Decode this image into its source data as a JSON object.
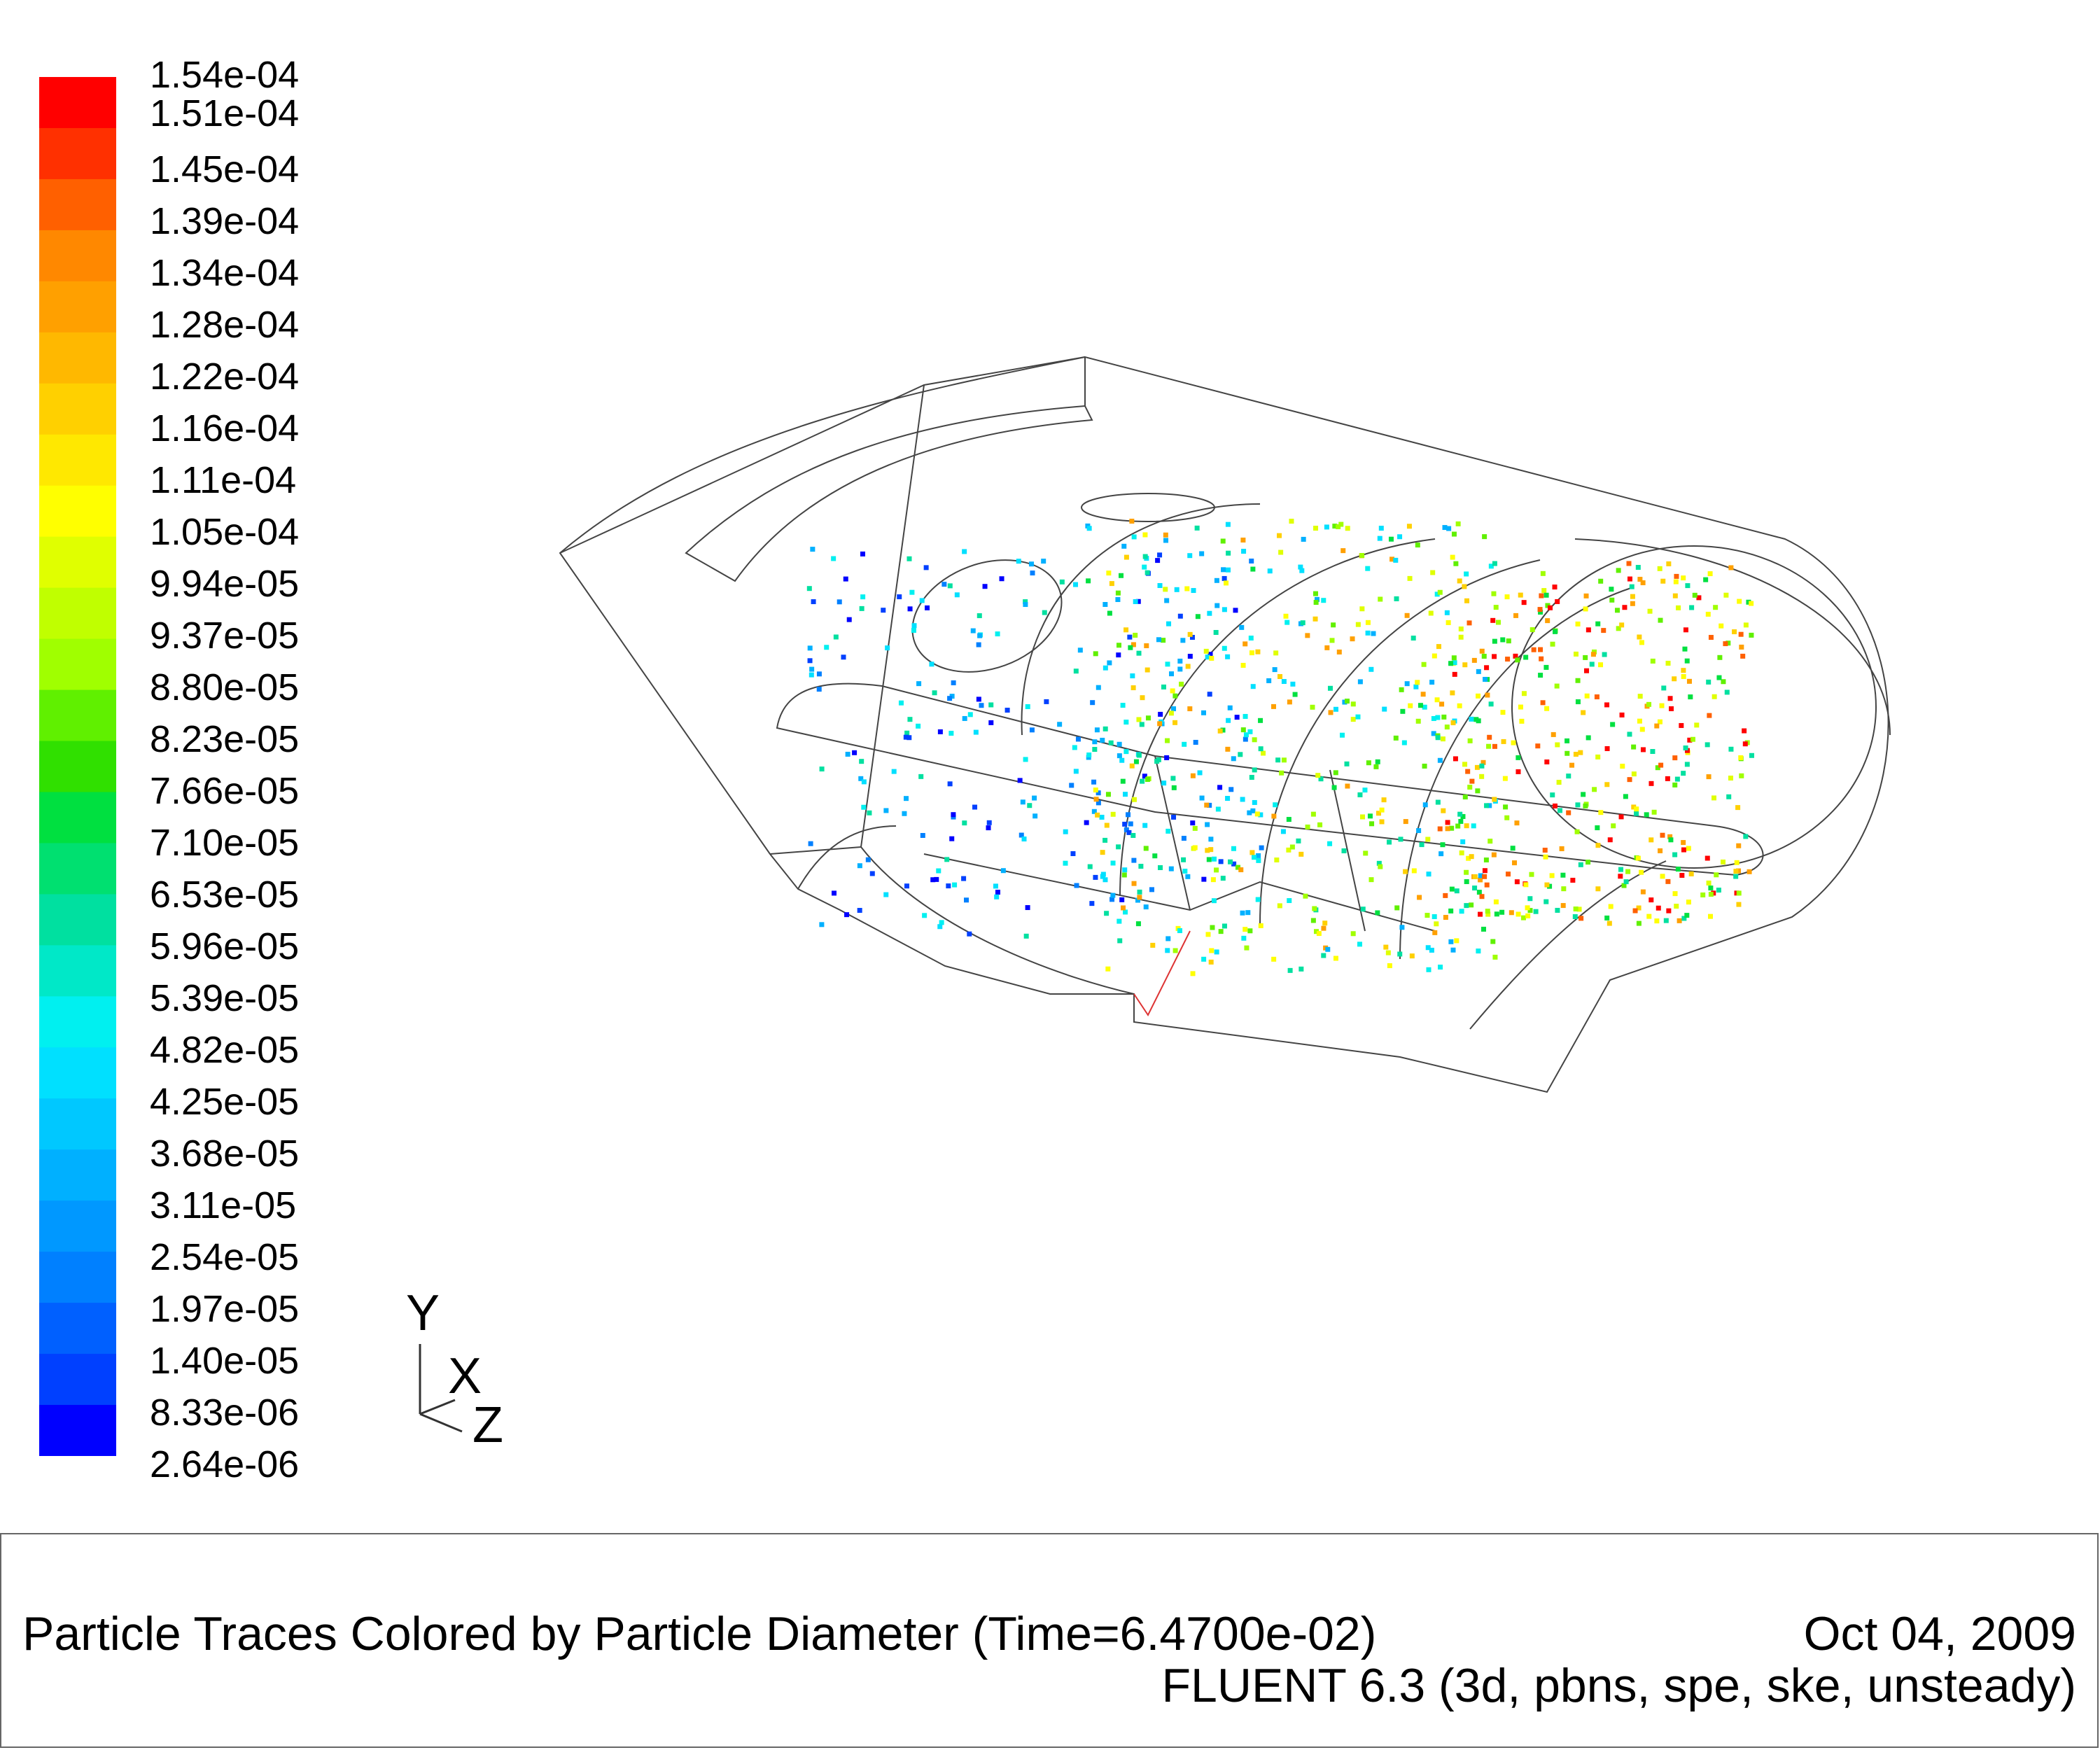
{
  "legend": {
    "labels": [
      "1.54e-04",
      "1.51e-04",
      "1.45e-04",
      "1.39e-04",
      "1.34e-04",
      "1.28e-04",
      "1.22e-04",
      "1.16e-04",
      "1.11e-04",
      "1.05e-04",
      "9.94e-05",
      "9.37e-05",
      "8.80e-05",
      "8.23e-05",
      "7.66e-05",
      "7.10e-05",
      "6.53e-05",
      "5.96e-05",
      "5.39e-05",
      "4.82e-05",
      "4.25e-05",
      "3.68e-05",
      "3.11e-05",
      "2.54e-05",
      "1.97e-05",
      "1.40e-05",
      "8.33e-06",
      "2.64e-06"
    ],
    "colors": [
      "#ff0000",
      "#ff3000",
      "#ff6000",
      "#ff8800",
      "#ffa000",
      "#ffb800",
      "#ffd000",
      "#ffe800",
      "#ffff00",
      "#e0ff00",
      "#c0ff00",
      "#a0ff00",
      "#60f000",
      "#30e000",
      "#00e040",
      "#00e070",
      "#00e0a0",
      "#00e8c8",
      "#00f0f0",
      "#00e0ff",
      "#00c8ff",
      "#00b0ff",
      "#0098ff",
      "#0080ff",
      "#0060ff",
      "#0040ff",
      "#0000ff"
    ]
  },
  "axes": {
    "y": "Y",
    "x": "X",
    "z": "Z"
  },
  "footer": {
    "title": "Particle Traces Colored by Particle Diameter  (Time=6.4700e-02)",
    "date": "Oct 04, 2009",
    "solver": "FLUENT 6.3 (3d, pbns, spe, ske, unsteady)"
  },
  "particle_colors": [
    "#0000ff",
    "#0040ff",
    "#0080ff",
    "#00b0ff",
    "#00e0ff",
    "#00f0f0",
    "#00e0a0",
    "#00e040",
    "#60f000",
    "#a0ff00",
    "#e0ff00",
    "#ffff00",
    "#ffd000",
    "#ffa000",
    "#ff6000",
    "#ff0000"
  ]
}
